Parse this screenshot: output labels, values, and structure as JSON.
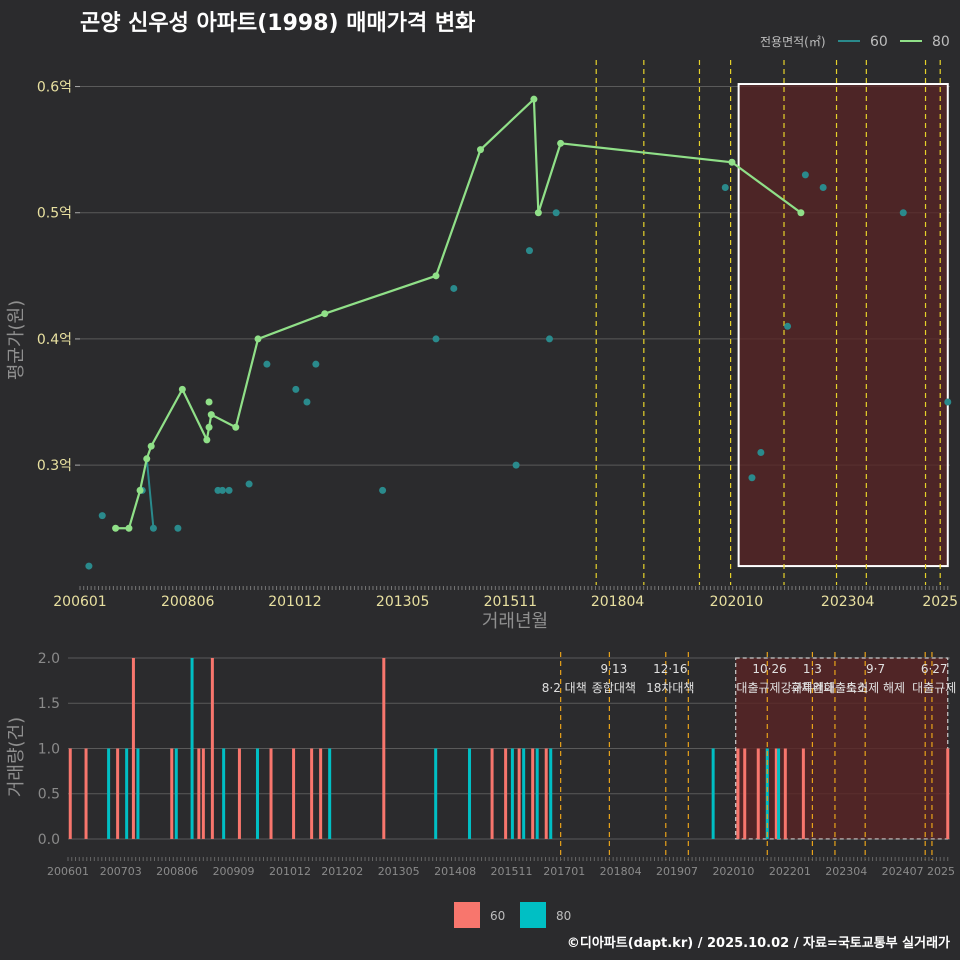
{
  "title": "곤양 신우성 아파트(1998) 매매가격 변화",
  "footer": "©디아파트(dapt.kr) / 2025.10.02 / 자료=국토교통부 실거래가",
  "colors": {
    "s60": "#2a8a8c",
    "s80": "#90e088",
    "bar60": "#f8766d",
    "bar80": "#00bfc4",
    "vline": "#e6d22a",
    "highlight": "#5a2424",
    "grid": "#5a5a5a"
  },
  "chart_data": [
    {
      "type": "line",
      "title": "곤양 신우성 아파트(1998) 매매가격 변화",
      "xlabel": "거래년월",
      "ylabel": "평균가(원)",
      "xlim": [
        2006.0,
        2025.55
      ],
      "ylim": [
        0.205,
        0.625
      ],
      "x_ticks": [
        {
          "v": 2006.0,
          "label": "200601"
        },
        {
          "v": 2008.42,
          "label": "200806"
        },
        {
          "v": 2010.83,
          "label": "201012"
        },
        {
          "v": 2013.25,
          "label": "201305"
        },
        {
          "v": 2015.67,
          "label": "201511"
        },
        {
          "v": 2018.08,
          "label": "201804"
        },
        {
          "v": 2020.75,
          "label": "202010"
        },
        {
          "v": 2023.25,
          "label": "202304"
        },
        {
          "v": 2025.33,
          "label": "2025"
        }
      ],
      "y_ticks": [
        {
          "v": 0.3,
          "label": "0.3억"
        },
        {
          "v": 0.4,
          "label": "0.4억"
        },
        {
          "v": 0.5,
          "label": "0.5억"
        },
        {
          "v": 0.6,
          "label": "0.6억"
        }
      ],
      "legend_title": "전용면적(㎡)",
      "legend": [
        {
          "name": "60",
          "key": "s60"
        },
        {
          "name": "80",
          "key": "s80"
        }
      ],
      "highlight": {
        "x0": 2020.8,
        "x1": 2025.5,
        "y0": 0.22,
        "y1": 0.602
      },
      "vlines": [
        2017.6,
        2018.67,
        2019.92,
        2020.62,
        2021.82,
        2023.0,
        2023.67,
        2025.0,
        2025.33
      ],
      "line80": [
        {
          "x": 2006.8,
          "y": 0.25
        },
        {
          "x": 2007.1,
          "y": 0.25
        },
        {
          "x": 2007.35,
          "y": 0.28
        },
        {
          "x": 2007.5,
          "y": 0.305
        },
        {
          "x": 2007.6,
          "y": 0.315
        },
        {
          "x": 2008.3,
          "y": 0.36
        },
        {
          "x": 2008.85,
          "y": 0.32
        },
        {
          "x": 2008.95,
          "y": 0.34
        },
        {
          "x": 2009.5,
          "y": 0.33
        },
        {
          "x": 2010.0,
          "y": 0.4
        },
        {
          "x": 2011.5,
          "y": 0.42
        },
        {
          "x": 2014.0,
          "y": 0.45
        },
        {
          "x": 2015.0,
          "y": 0.55
        },
        {
          "x": 2016.2,
          "y": 0.59
        },
        {
          "x": 2016.3,
          "y": 0.5
        },
        {
          "x": 2016.8,
          "y": 0.555
        },
        {
          "x": 2020.65,
          "y": 0.54
        },
        {
          "x": 2022.2,
          "y": 0.5
        }
      ],
      "points80_extra": [
        {
          "x": 2008.9,
          "y": 0.33
        },
        {
          "x": 2008.9,
          "y": 0.35
        }
      ],
      "line60": [
        {
          "x": 2007.5,
          "y": 0.305
        },
        {
          "x": 2007.65,
          "y": 0.25
        }
      ],
      "points60": [
        {
          "x": 2006.2,
          "y": 0.22
        },
        {
          "x": 2006.5,
          "y": 0.26
        },
        {
          "x": 2007.4,
          "y": 0.28
        },
        {
          "x": 2007.65,
          "y": 0.25
        },
        {
          "x": 2008.2,
          "y": 0.25
        },
        {
          "x": 2009.1,
          "y": 0.28
        },
        {
          "x": 2009.2,
          "y": 0.28
        },
        {
          "x": 2009.35,
          "y": 0.28
        },
        {
          "x": 2009.8,
          "y": 0.285
        },
        {
          "x": 2010.2,
          "y": 0.38
        },
        {
          "x": 2010.85,
          "y": 0.36
        },
        {
          "x": 2011.1,
          "y": 0.35
        },
        {
          "x": 2011.3,
          "y": 0.38
        },
        {
          "x": 2012.8,
          "y": 0.28
        },
        {
          "x": 2014.0,
          "y": 0.4
        },
        {
          "x": 2014.4,
          "y": 0.44
        },
        {
          "x": 2015.8,
          "y": 0.3
        },
        {
          "x": 2016.1,
          "y": 0.47
        },
        {
          "x": 2016.55,
          "y": 0.4
        },
        {
          "x": 2016.7,
          "y": 0.5
        },
        {
          "x": 2020.5,
          "y": 0.52
        },
        {
          "x": 2021.1,
          "y": 0.29
        },
        {
          "x": 2021.3,
          "y": 0.31
        },
        {
          "x": 2021.9,
          "y": 0.41
        },
        {
          "x": 2022.3,
          "y": 0.53
        },
        {
          "x": 2022.7,
          "y": 0.52
        },
        {
          "x": 2024.5,
          "y": 0.5
        },
        {
          "x": 2025.5,
          "y": 0.35
        }
      ]
    },
    {
      "type": "bar",
      "ylabel": "거래량(건)",
      "xlim": [
        2006.0,
        2025.55
      ],
      "ylim": [
        -0.1,
        2.0
      ],
      "x_ticks": [
        {
          "v": 2006.0,
          "label": "200601"
        },
        {
          "v": 2007.17,
          "label": "200703"
        },
        {
          "v": 2008.42,
          "label": "200806"
        },
        {
          "v": 2009.67,
          "label": "200909"
        },
        {
          "v": 2010.92,
          "label": "201012"
        },
        {
          "v": 2012.08,
          "label": "201202"
        },
        {
          "v": 2013.33,
          "label": "201305"
        },
        {
          "v": 2014.58,
          "label": "201408"
        },
        {
          "v": 2015.83,
          "label": "201511"
        },
        {
          "v": 2017.0,
          "label": "201701"
        },
        {
          "v": 2018.25,
          "label": "201804"
        },
        {
          "v": 2019.5,
          "label": "201907"
        },
        {
          "v": 2020.75,
          "label": "202010"
        },
        {
          "v": 2022.0,
          "label": "202201"
        },
        {
          "v": 2023.25,
          "label": "202304"
        },
        {
          "v": 2024.5,
          "label": "202407"
        },
        {
          "v": 2025.35,
          "label": "2025"
        }
      ],
      "y_ticks": [
        {
          "v": 0.0,
          "label": "0.0"
        },
        {
          "v": 0.5,
          "label": "0.5"
        },
        {
          "v": 1.0,
          "label": "1.0"
        },
        {
          "v": 1.5,
          "label": "1.5"
        },
        {
          "v": 2.0,
          "label": "2.0"
        }
      ],
      "highlight": {
        "x0": 2020.8,
        "x1": 2025.5,
        "y0": 0.0,
        "y1": 2.0
      },
      "vlines": [
        2016.92,
        2018.0,
        2019.25,
        2019.75,
        2021.5,
        2022.5,
        2023.0,
        2023.67,
        2025.0,
        2025.15
      ],
      "policies": [
        {
          "x": 2017.0,
          "line1": "",
          "line2": "8·2 대책"
        },
        {
          "x": 2018.1,
          "line1": "9·13",
          "line2": "종합대책"
        },
        {
          "x": 2019.35,
          "line1": "12·16",
          "line2": "18차대책"
        },
        {
          "x": 2021.55,
          "line1": "10·26",
          "line2": "대출규제강화"
        },
        {
          "x": 2022.5,
          "line1": "1·3",
          "line2": "규제완화"
        },
        {
          "x": 2023.0,
          "line1": "",
          "line2": "특례대출축소"
        },
        {
          "x": 2023.9,
          "line1": "9·7",
          "line2": "토허제 해제"
        },
        {
          "x": 2025.2,
          "line1": "6·27",
          "line2": "대출규제"
        }
      ],
      "legend": [
        {
          "name": "60",
          "key": "bar60"
        },
        {
          "name": "80",
          "key": "bar80"
        }
      ],
      "bars60": [
        {
          "x": 2006.05,
          "v": 1
        },
        {
          "x": 2006.4,
          "v": 1
        },
        {
          "x": 2007.1,
          "v": 1
        },
        {
          "x": 2007.45,
          "v": 2
        },
        {
          "x": 2008.3,
          "v": 1
        },
        {
          "x": 2008.9,
          "v": 1
        },
        {
          "x": 2009.0,
          "v": 1
        },
        {
          "x": 2009.2,
          "v": 2
        },
        {
          "x": 2009.8,
          "v": 1
        },
        {
          "x": 2010.5,
          "v": 1
        },
        {
          "x": 2011.0,
          "v": 1
        },
        {
          "x": 2011.4,
          "v": 1
        },
        {
          "x": 2011.6,
          "v": 1
        },
        {
          "x": 2013.0,
          "v": 2
        },
        {
          "x": 2015.4,
          "v": 1
        },
        {
          "x": 2015.7,
          "v": 1
        },
        {
          "x": 2016.0,
          "v": 1
        },
        {
          "x": 2016.3,
          "v": 1
        },
        {
          "x": 2016.6,
          "v": 1
        },
        {
          "x": 2020.85,
          "v": 1
        },
        {
          "x": 2021.0,
          "v": 1
        },
        {
          "x": 2021.3,
          "v": 1
        },
        {
          "x": 2021.7,
          "v": 1
        },
        {
          "x": 2021.9,
          "v": 1
        },
        {
          "x": 2022.3,
          "v": 1
        },
        {
          "x": 2025.5,
          "v": 1
        }
      ],
      "bars80": [
        {
          "x": 2006.9,
          "v": 1
        },
        {
          "x": 2007.3,
          "v": 1
        },
        {
          "x": 2007.55,
          "v": 1
        },
        {
          "x": 2008.4,
          "v": 1
        },
        {
          "x": 2008.75,
          "v": 2
        },
        {
          "x": 2009.45,
          "v": 1
        },
        {
          "x": 2010.2,
          "v": 1
        },
        {
          "x": 2011.8,
          "v": 1
        },
        {
          "x": 2014.15,
          "v": 1
        },
        {
          "x": 2014.9,
          "v": 1
        },
        {
          "x": 2015.85,
          "v": 1
        },
        {
          "x": 2016.1,
          "v": 1
        },
        {
          "x": 2016.4,
          "v": 1
        },
        {
          "x": 2016.7,
          "v": 1
        },
        {
          "x": 2020.3,
          "v": 1
        },
        {
          "x": 2021.5,
          "v": 1
        },
        {
          "x": 2021.75,
          "v": 1
        }
      ]
    }
  ]
}
